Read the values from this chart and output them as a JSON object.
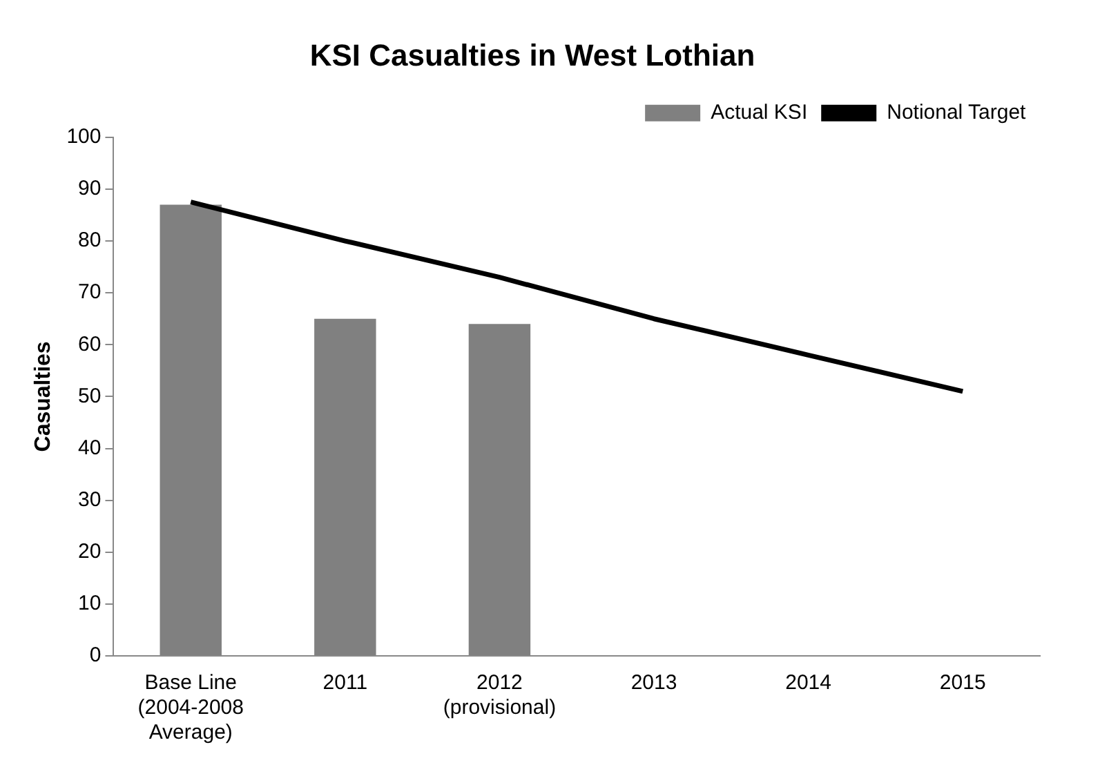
{
  "chart_data": {
    "type": "bar",
    "title": "KSI Casualties in West Lothian",
    "ylabel": "Casualties",
    "categories": [
      "Base Line\n(2004-2008\nAverage)",
      "2011",
      "2012\n(provisional)",
      "2013",
      "2014",
      "2015"
    ],
    "series": [
      {
        "name": "Actual KSI",
        "color": "#808080",
        "values": [
          87,
          65,
          64,
          null,
          null,
          null
        ]
      },
      {
        "name": "Notional Target",
        "type": "line",
        "color": "#000000",
        "values": [
          87.5,
          80,
          73,
          65,
          58,
          51
        ]
      }
    ],
    "ylim": [
      0,
      100
    ],
    "yticks": [
      0,
      10,
      20,
      30,
      40,
      50,
      60,
      70,
      80,
      90,
      100
    ],
    "grid": false,
    "legend": "top right",
    "marker": "none"
  }
}
